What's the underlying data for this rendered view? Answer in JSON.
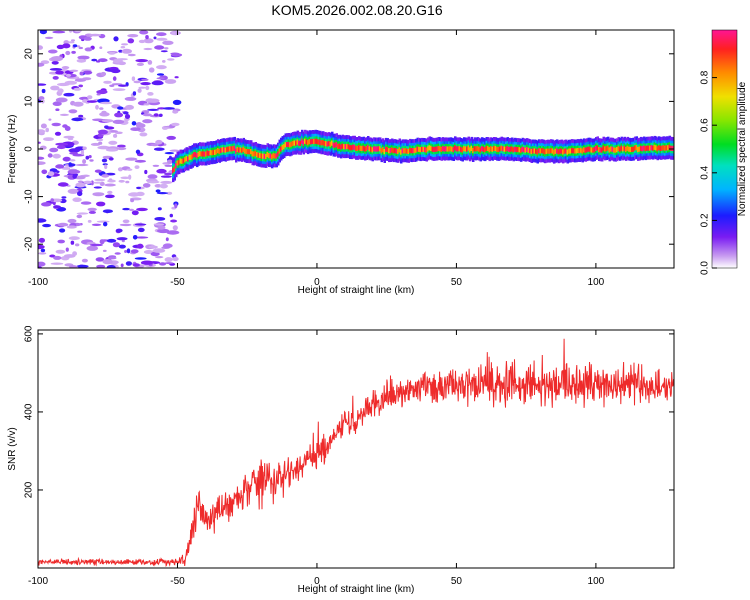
{
  "title": "KOM5.2026.002.08.20.G16",
  "colors": {
    "snr_line": "#ee2b2b",
    "background": "#ffffff",
    "axes": "#000000"
  },
  "chart_data": [
    {
      "type": "heatmap",
      "title": "KOM5.2026.002.08.20.G16",
      "xlabel": "Height of straight line (km)",
      "ylabel": "Frequency (Hz)",
      "xlim": [
        -100,
        128
      ],
      "ylim": [
        -25,
        25
      ],
      "xticks": [
        -100,
        -50,
        0,
        50,
        100
      ],
      "yticks": [
        -20,
        -10,
        0,
        10,
        20
      ],
      "xtick_labels": [
        "-100",
        "-50",
        "0",
        "50",
        "100"
      ],
      "ytick_labels": [
        "-20",
        "-10",
        "0",
        "10",
        "20"
      ],
      "colorbar": {
        "label": "Normalized spectral amplitude",
        "range": [
          0,
          1
        ],
        "ticks": [
          0.0,
          0.2,
          0.4,
          0.6,
          0.8
        ],
        "tick_labels": [
          "0.0",
          "0.2",
          "0.4",
          "0.6",
          "0.8"
        ]
      },
      "ridge": {
        "x": [
          -52,
          -50,
          -45,
          -40,
          -35,
          -30,
          -25,
          -20,
          -15,
          -12,
          -10,
          -5,
          0,
          5,
          10,
          20,
          30,
          40,
          50,
          60,
          70,
          80,
          90,
          100,
          110,
          120,
          128
        ],
        "freq": [
          -5,
          -3,
          -1.5,
          -1,
          -0.5,
          0,
          -0.5,
          -1.5,
          -1.5,
          0.5,
          1,
          1.5,
          1.5,
          1,
          0.5,
          0,
          -0.5,
          0,
          0,
          0,
          0,
          -0.5,
          -0.5,
          0,
          0,
          0.2,
          0.2
        ],
        "noise_region_x": [
          -100,
          -50
        ]
      }
    },
    {
      "type": "line",
      "xlabel": "Height of straight line (km)",
      "ylabel": "SNR (v/v)",
      "xlim": [
        -100,
        128
      ],
      "ylim": [
        0,
        610
      ],
      "xticks": [
        -100,
        -50,
        0,
        50,
        100
      ],
      "yticks": [
        200,
        400,
        600
      ],
      "xtick_labels": [
        "-100",
        "-50",
        "0",
        "50",
        "100"
      ],
      "ytick_labels": [
        "200",
        "400",
        "600"
      ],
      "series": [
        {
          "name": "SNR",
          "x": [
            -100,
            -80,
            -60,
            -50,
            -47,
            -45,
            -44,
            -42,
            -40,
            -38,
            -35,
            -30,
            -25,
            -22,
            -20,
            -18,
            -15,
            -10,
            -5,
            0,
            5,
            10,
            15,
            20,
            25,
            30,
            35,
            40,
            50,
            60,
            70,
            80,
            90,
            100,
            110,
            120,
            128
          ],
          "mean": [
            15,
            15,
            15,
            15,
            30,
            80,
            130,
            150,
            120,
            130,
            150,
            170,
            200,
            210,
            250,
            230,
            220,
            240,
            270,
            290,
            320,
            360,
            390,
            420,
            440,
            450,
            460,
            465,
            465,
            470,
            475,
            470,
            470,
            470,
            470,
            470,
            470
          ],
          "noise": [
            8,
            8,
            8,
            10,
            30,
            40,
            50,
            45,
            40,
            40,
            40,
            45,
            50,
            60,
            80,
            70,
            50,
            45,
            40,
            40,
            40,
            40,
            40,
            40,
            45,
            45,
            45,
            45,
            50,
            50,
            55,
            60,
            65,
            60,
            55,
            50,
            45
          ]
        }
      ]
    }
  ]
}
